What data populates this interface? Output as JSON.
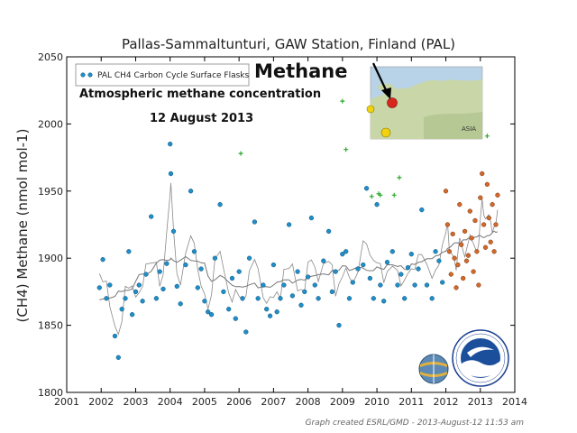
{
  "chart_data": {
    "type": "scatter",
    "title": "Pallas-Sammaltunturi, GAW Station, Finland (PAL)",
    "ylabel": "(CH4) Methane (nmol mol-1)",
    "xlim": [
      2001,
      2014
    ],
    "ylim": [
      1800,
      2050
    ],
    "x_ticks": [
      "2001",
      "2002",
      "2003",
      "2004",
      "2005",
      "2006",
      "2007",
      "2008",
      "2009",
      "2010",
      "2011",
      "2012",
      "2013",
      "2014"
    ],
    "y_ticks": [
      "1800",
      "1850",
      "1900",
      "1950",
      "2000",
      "2050"
    ],
    "grid": false,
    "legend_position": "top-left",
    "legend": [
      "PAL CH4 Carbon Cycle Surface Flasks"
    ],
    "annotations": {
      "headline": "Methane",
      "subtitle": "Atmospheric methane concentration",
      "date": "12 August 2013",
      "map_label": "ASIA"
    },
    "credit": "Graph created ESRL/GMD - 2013-August-12 11:53 am",
    "colors": {
      "flask": "#1f8fc9",
      "flask_edge": "#0c4f78",
      "preliminary": "#d2692b",
      "rejected": "#2ea82e",
      "curve": "#8a8a8a",
      "trend": "#777777"
    },
    "series": [
      {
        "name": "PAL CH4 Carbon Cycle Surface Flasks",
        "x": [
          2001.95,
          2002.05,
          2002.15,
          2002.25,
          2002.4,
          2002.5,
          2002.6,
          2002.7,
          2002.8,
          2002.9,
          2003.0,
          2003.1,
          2003.2,
          2003.3,
          2003.45,
          2003.6,
          2003.7,
          2003.8,
          2003.9,
          2004.0,
          2004.02,
          2004.1,
          2004.2,
          2004.3,
          2004.45,
          2004.6,
          2004.7,
          2004.8,
          2004.9,
          2005.0,
          2005.1,
          2005.2,
          2005.3,
          2005.45,
          2005.55,
          2005.7,
          2005.8,
          2005.9,
          2006.0,
          2006.1,
          2006.2,
          2006.3,
          2006.45,
          2006.55,
          2006.7,
          2006.8,
          2006.9,
          2007.0,
          2007.1,
          2007.2,
          2007.3,
          2007.45,
          2007.55,
          2007.7,
          2007.8,
          2007.9,
          2008.0,
          2008.1,
          2008.2,
          2008.3,
          2008.45,
          2008.6,
          2008.7,
          2008.8,
          2008.9,
          2009.0,
          2009.1,
          2009.2,
          2009.3,
          2009.45,
          2009.6,
          2009.7,
          2009.8,
          2009.9,
          2010.0,
          2010.1,
          2010.2,
          2010.3,
          2010.45,
          2010.6,
          2010.7,
          2010.8,
          2010.9,
          2011.0,
          2011.1,
          2011.2,
          2011.3,
          2011.45,
          2011.6,
          2011.7,
          2011.8,
          2011.9
        ],
        "y": [
          1878,
          1899,
          1870,
          1880,
          1842,
          1826,
          1862,
          1870,
          1905,
          1858,
          1875,
          1880,
          1868,
          1888,
          1931,
          1870,
          1890,
          1877,
          1896,
          1985,
          1963,
          1920,
          1879,
          1866,
          1895,
          1950,
          1905,
          1878,
          1892,
          1868,
          1860,
          1858,
          1900,
          1940,
          1875,
          1862,
          1885,
          1855,
          1890,
          1870,
          1845,
          1900,
          1927,
          1870,
          1880,
          1862,
          1857,
          1895,
          1860,
          1870,
          1880,
          1925,
          1872,
          1890,
          1865,
          1875,
          1886,
          1930,
          1880,
          1870,
          1898,
          1920,
          1875,
          1890,
          1850,
          1903,
          1905,
          1870,
          1882,
          1892,
          1895,
          1952,
          1885,
          1870,
          1940,
          1880,
          1868,
          1897,
          1905,
          1880,
          1888,
          1870,
          1893,
          1903,
          1880,
          1892,
          1936,
          1880,
          1870,
          1905,
          1898,
          1882
        ]
      },
      {
        "name": "",
        "x": [
          2012.0,
          2012.05,
          2012.1,
          2012.15,
          2012.2,
          2012.25,
          2012.3,
          2012.35,
          2012.4,
          2012.45,
          2012.5,
          2012.55,
          2012.6,
          2012.65,
          2012.7,
          2012.75,
          2012.8,
          2012.85,
          2012.9,
          2012.95,
          2013.0,
          2013.05,
          2013.1,
          2013.15,
          2013.2,
          2013.25,
          2013.3,
          2013.35,
          2013.4,
          2013.45,
          2013.5
        ],
        "y": [
          1950,
          1925,
          1905,
          1888,
          1918,
          1900,
          1878,
          1895,
          1940,
          1910,
          1885,
          1920,
          1898,
          1902,
          1935,
          1915,
          1890,
          1928,
          1905,
          1880,
          1945,
          1963,
          1925,
          1908,
          1955,
          1930,
          1912,
          1940,
          1905,
          1925,
          1947
        ]
      },
      {
        "name": "",
        "x": [
          2006.05,
          2009.0,
          2009.1,
          2009.85,
          2010.05,
          2010.1,
          2010.5,
          2010.65,
          2013.2
        ],
        "y": [
          1978,
          2017,
          1981,
          1946,
          1948,
          1947,
          1947,
          1960,
          1991
        ]
      }
    ]
  }
}
